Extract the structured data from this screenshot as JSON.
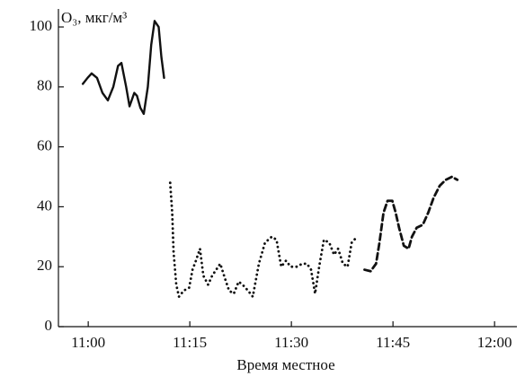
{
  "chart_data": {
    "type": "line",
    "y_label": "O₃, мкг/м³",
    "x_label": "Время местное",
    "xlim": [
      655.6,
      723.3
    ],
    "xticks": [
      {
        "value": 660,
        "label": "11:00"
      },
      {
        "value": 675,
        "label": "11:15"
      },
      {
        "value": 690,
        "label": "11:30"
      },
      {
        "value": 705,
        "label": "11:45"
      },
      {
        "value": 720,
        "label": "12:00"
      }
    ],
    "ylim": [
      0,
      106
    ],
    "yticks": [
      0,
      20,
      40,
      60,
      80,
      100
    ],
    "grid": false,
    "series": [
      {
        "color": "#111111",
        "dash": "solid",
        "x": [
          659.2,
          659.9,
          660.5,
          661.3,
          662.1,
          662.9,
          663.7,
          664.4,
          664.9,
          665.6,
          666.1,
          666.8,
          667.2,
          667.7,
          668.2,
          668.8,
          669.3,
          669.8,
          670.4,
          670.8,
          671.2
        ],
        "values": [
          81,
          83,
          84.5,
          83,
          78,
          75.5,
          80,
          87,
          88,
          80,
          73.5,
          78,
          77,
          73,
          71,
          80,
          94,
          102,
          100,
          90,
          83
        ]
      },
      {
        "color": "#111111",
        "dash": "dotted",
        "x": [
          672.1,
          672.4,
          672.6,
          673.0,
          673.4,
          674.1,
          674.9,
          675.4,
          675.9,
          676.5,
          677.0,
          677.7,
          678.3,
          678.9,
          679.5,
          680.2,
          680.8,
          681.5,
          682.2,
          682.8,
          683.6,
          684.3,
          685.2,
          686.1,
          687.1,
          687.8,
          688.5,
          689.2,
          689.9,
          690.8,
          691.6,
          692.3,
          692.9,
          693.5,
          694.1,
          694.8,
          695.6,
          696.3,
          696.9,
          697.6,
          698.3,
          698.9,
          699.7
        ],
        "values": [
          48,
          38,
          25,
          14,
          10,
          12,
          13,
          19,
          22,
          26,
          17,
          14,
          17,
          19,
          21,
          16,
          12,
          11,
          15,
          14,
          12,
          10,
          21,
          28,
          30,
          29,
          20,
          22,
          20,
          20,
          21,
          21,
          19,
          11,
          20,
          29,
          28,
          24,
          26,
          21,
          20,
          28,
          30
        ]
      },
      {
        "color": "#111111",
        "dash": "dashed",
        "x": [
          700.8,
          701.7,
          702.5,
          703.0,
          703.6,
          704.2,
          704.9,
          705.4,
          705.9,
          706.6,
          707.3,
          707.8,
          708.5,
          709.4,
          710.2,
          711.0,
          711.9,
          712.8,
          713.7,
          714.5
        ],
        "values": [
          19,
          18.5,
          21,
          28,
          38,
          42,
          42,
          38,
          33,
          27,
          26,
          30,
          33,
          34,
          38,
          43,
          47,
          49,
          50,
          49
        ]
      }
    ]
  }
}
